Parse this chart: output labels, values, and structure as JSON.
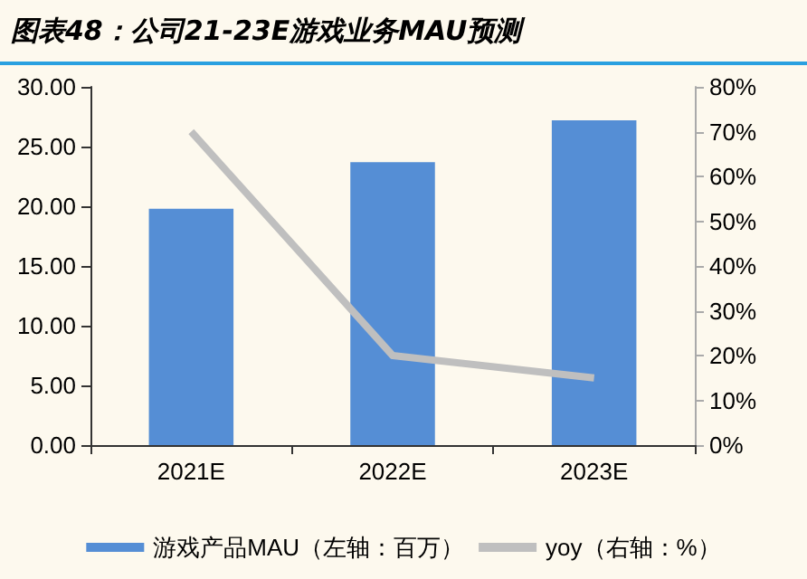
{
  "chart_data": {
    "type": "bar",
    "title": "图表48：公司21-23E游戏业务MAU预测",
    "categories": [
      "2021E",
      "2022E",
      "2023E"
    ],
    "series": [
      {
        "name": "游戏产品MAU（左轴：百万）",
        "color": "#558ed5",
        "values": [
          19.8,
          23.7,
          27.2
        ]
      },
      {
        "name": "yoy（右轴：%）",
        "type": "line",
        "axis": "y2",
        "color": "#bfbfbf",
        "values": [
          70,
          20,
          15
        ]
      }
    ],
    "ylim": [
      0,
      30
    ],
    "yticks": [
      {
        "value": 0,
        "label": "0.00"
      },
      {
        "value": 5,
        "label": "5.00"
      },
      {
        "value": 10,
        "label": "10.00"
      },
      {
        "value": 15,
        "label": "15.00"
      },
      {
        "value": 20,
        "label": "20.00"
      },
      {
        "value": 25,
        "label": "25.00"
      },
      {
        "value": 30,
        "label": "30.00"
      }
    ],
    "y2lim": [
      0,
      80
    ],
    "y2ticks": [
      {
        "value": 0,
        "label": "0%"
      },
      {
        "value": 10,
        "label": "10%"
      },
      {
        "value": 20,
        "label": "20%"
      },
      {
        "value": 30,
        "label": "30%"
      },
      {
        "value": 40,
        "label": "40%"
      },
      {
        "value": 50,
        "label": "50%"
      },
      {
        "value": 60,
        "label": "60%"
      },
      {
        "value": 70,
        "label": "70%"
      },
      {
        "value": 80,
        "label": "80%"
      }
    ],
    "grid": false,
    "legend": "bottom",
    "marker": "none",
    "line_style": "solid"
  }
}
